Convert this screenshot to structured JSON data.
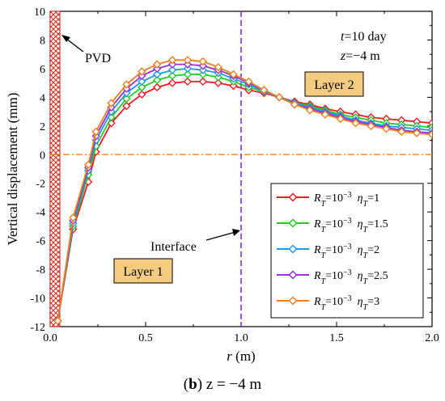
{
  "chart_data": {
    "type": "line",
    "caption": {
      "label": "b",
      "text": " z = −4 m"
    },
    "annotation": {
      "t_label": "t",
      "t_text": "=10 day",
      "z_label": "z",
      "z_text": "=−4 m"
    },
    "xlabel": {
      "var": "r",
      "unit": " (m)"
    },
    "ylabel": "Vertical displacement  (mm)",
    "xlim": [
      0,
      2
    ],
    "ylim": [
      -12,
      10
    ],
    "xticks": [
      "0.0",
      "0.5",
      "1.0",
      "1.5",
      "2.0"
    ],
    "yticks": [
      "-12",
      "-10",
      "-8",
      "-6",
      "-4",
      "-2",
      "0",
      "2",
      "4",
      "6",
      "8",
      "10"
    ],
    "pvd_label": "PVD",
    "interface_label": "Interface",
    "interface_x": 1.0,
    "layer1_label": "Layer 1",
    "layer2_label": "Layer 2",
    "zero_line_y": 0,
    "colors": {
      "layer_box_fill": "#F5CC7F",
      "interface_line": "#8A2BE2",
      "zero_line": "#F28C28",
      "pvd_hatch": "#D9261C"
    },
    "x": [
      0.04,
      0.12,
      0.2,
      0.24,
      0.32,
      0.4,
      0.48,
      0.56,
      0.64,
      0.72,
      0.8,
      0.88,
      0.96,
      1.04,
      1.12,
      1.2,
      1.28,
      1.36,
      1.44,
      1.52,
      1.6,
      1.68,
      1.76,
      1.84,
      1.92,
      2.0
    ],
    "series": [
      {
        "name": "R_T=10^-3 η_T=1",
        "legend": {
          "r": "R",
          "sub": "T",
          "eq": "=10",
          "exp": "−3",
          "eta": "η",
          "eta_sub": "T",
          "eta_val": "=1"
        },
        "color": "#EE1C25",
        "values": [
          -11.6,
          -5.2,
          -1.9,
          0.2,
          2.2,
          3.4,
          4.2,
          4.7,
          5.0,
          5.1,
          5.1,
          5.0,
          4.8,
          4.5,
          4.3,
          4.0,
          3.7,
          3.5,
          3.2,
          3.0,
          2.8,
          2.6,
          2.5,
          2.4,
          2.3,
          2.2
        ]
      },
      {
        "name": "R_T=10^-3 η_T=1.5",
        "legend": {
          "r": "R",
          "sub": "T",
          "eq": "=10",
          "exp": "−3",
          "eta": "η",
          "eta_sub": "T",
          "eta_val": "=1.5"
        },
        "color": "#22CC22",
        "values": [
          -11.6,
          -5.0,
          -1.4,
          0.6,
          2.6,
          3.9,
          4.7,
          5.2,
          5.5,
          5.6,
          5.6,
          5.4,
          5.1,
          4.7,
          4.4,
          4.0,
          3.6,
          3.4,
          3.1,
          2.8,
          2.6,
          2.4,
          2.2,
          2.1,
          2.0,
          1.9
        ]
      },
      {
        "name": "R_T=10^-3 η_T=2",
        "legend": {
          "r": "R",
          "sub": "T",
          "eq": "=10",
          "exp": "−3",
          "eta": "η",
          "eta_sub": "T",
          "eta_val": "=2"
        },
        "color": "#1E9BE8",
        "values": [
          -11.6,
          -4.8,
          -1.1,
          1.0,
          3.0,
          4.3,
          5.1,
          5.6,
          5.9,
          6.0,
          5.9,
          5.7,
          5.3,
          4.9,
          4.4,
          4.0,
          3.6,
          3.3,
          3.0,
          2.7,
          2.4,
          2.2,
          2.0,
          1.9,
          1.8,
          1.7
        ]
      },
      {
        "name": "R_T=10^-3 η_T=2.5",
        "legend": {
          "r": "R",
          "sub": "T",
          "eq": "=10",
          "exp": "−3",
          "eta": "η",
          "eta_sub": "T",
          "eta_val": "=2.5"
        },
        "color": "#9B30D9",
        "values": [
          -11.6,
          -4.6,
          -0.9,
          1.3,
          3.3,
          4.6,
          5.5,
          6.0,
          6.3,
          6.3,
          6.2,
          5.9,
          5.5,
          5.0,
          4.5,
          4.0,
          3.5,
          3.2,
          2.9,
          2.6,
          2.3,
          2.1,
          1.9,
          1.7,
          1.6,
          1.5
        ]
      },
      {
        "name": "R_T=10^-3 η_T=3",
        "legend": {
          "r": "R",
          "sub": "T",
          "eq": "=10",
          "exp": "−3",
          "eta": "η",
          "eta_sub": "T",
          "eta_val": "=3"
        },
        "color": "#F07F20",
        "values": [
          -11.6,
          -4.4,
          -0.7,
          1.6,
          3.6,
          4.9,
          5.8,
          6.3,
          6.6,
          6.6,
          6.5,
          6.1,
          5.6,
          5.1,
          4.5,
          4.0,
          3.5,
          3.1,
          2.8,
          2.5,
          2.2,
          2.0,
          1.8,
          1.6,
          1.5,
          1.4
        ]
      }
    ]
  }
}
